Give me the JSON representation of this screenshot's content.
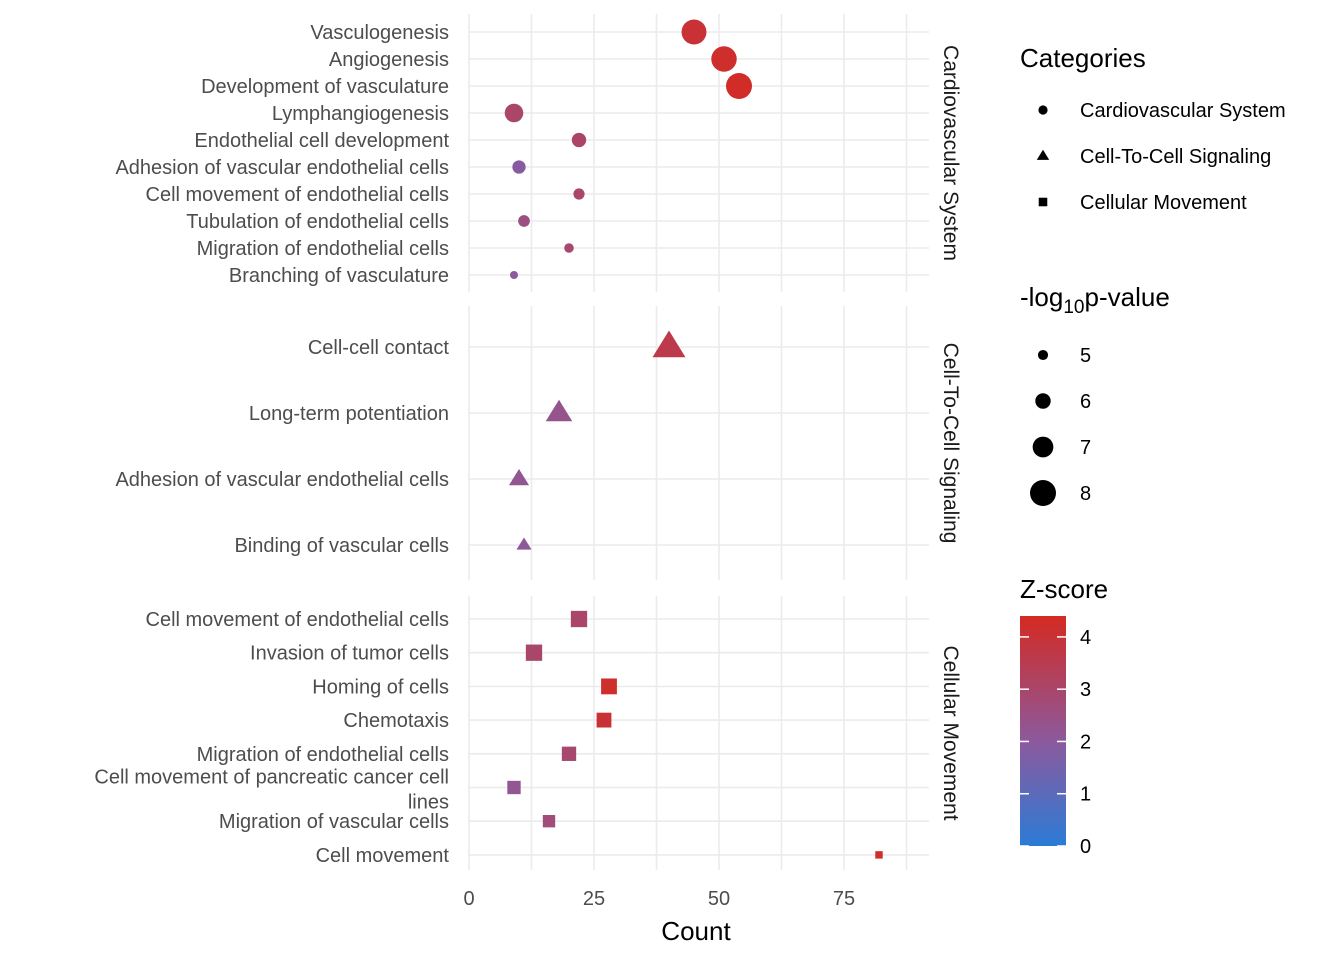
{
  "chart_data": {
    "type": "scatter",
    "xlabel": "Count",
    "xlim": [
      0,
      92
    ],
    "x_ticks": [
      "0",
      "25",
      "50",
      "75"
    ],
    "x_tick_values": [
      0,
      25,
      50,
      75
    ],
    "facets": [
      {
        "name": "Cardiovascular System",
        "shape": "circle",
        "points": [
          {
            "label": "Vasculogenesis",
            "x": 45,
            "size": 7.8,
            "z": 4.0
          },
          {
            "label": "Angiogenesis",
            "x": 51,
            "size": 7.9,
            "z": 4.2
          },
          {
            "label": "Development of vasculature",
            "x": 54,
            "size": 8.0,
            "z": 4.3
          },
          {
            "label": "Lymphangiogenesis",
            "x": 9,
            "size": 6.6,
            "z": 3.0
          },
          {
            "label": "Endothelial cell development",
            "x": 22,
            "size": 5.8,
            "z": 3.1
          },
          {
            "label": "Adhesion of vascular endothelial cells",
            "x": 10,
            "size": 5.6,
            "z": 1.9
          },
          {
            "label": "Cell movement of endothelial cells",
            "x": 22,
            "size": 5.2,
            "z": 3.0
          },
          {
            "label": "Tubulation of endothelial cells",
            "x": 11,
            "size": 5.3,
            "z": 2.5
          },
          {
            "label": "Migration of endothelial cells",
            "x": 20,
            "size": 4.9,
            "z": 2.9
          },
          {
            "label": "Branching of vasculature",
            "x": 9,
            "size": 4.6,
            "z": 2.0
          }
        ]
      },
      {
        "name": "Cell-To-Cell Signaling",
        "shape": "triangle",
        "points": [
          {
            "label": "Cell-cell contact",
            "x": 40,
            "size": 7.7,
            "z": 3.6
          },
          {
            "label": "Long-term potentiation",
            "x": 18,
            "size": 6.8,
            "z": 2.3
          },
          {
            "label": "Adhesion of vascular endothelial cells",
            "x": 10,
            "size": 5.9,
            "z": 2.2
          },
          {
            "label": "Binding of vascular cells",
            "x": 11,
            "size": 5.2,
            "z": 2.1
          }
        ]
      },
      {
        "name": "Cellular Movement",
        "shape": "square",
        "points": [
          {
            "label": "Cell movement of endothelial cells",
            "x": 22,
            "size": 6.4,
            "z": 3.0
          },
          {
            "label": "Invasion of tumor cells",
            "x": 13,
            "size": 6.4,
            "z": 3.0
          },
          {
            "label": "Homing of cells",
            "x": 28,
            "size": 6.3,
            "z": 4.2
          },
          {
            "label": "Chemotaxis",
            "x": 27,
            "size": 6.1,
            "z": 4.0
          },
          {
            "label": "Migration of endothelial cells",
            "x": 20,
            "size": 6.0,
            "z": 2.9
          },
          {
            "label": "Cell movement of pancreatic cancer cell lines",
            "x": 9,
            "size": 5.8,
            "z": 2.2
          },
          {
            "label": "Migration of vascular cells",
            "x": 16,
            "size": 5.6,
            "z": 2.7
          },
          {
            "label": "Cell movement",
            "x": 82,
            "size": 4.6,
            "z": 4.2
          }
        ]
      }
    ],
    "legends": {
      "shape": {
        "title": "Categories",
        "items": [
          "Cardiovascular System",
          "Cell-To-Cell Signaling",
          "Cellular Movement"
        ]
      },
      "size": {
        "title_prefix": "-log",
        "title_sub": "10",
        "title_suffix": "p-value",
        "items": [
          "5",
          "6",
          "7",
          "8"
        ],
        "values": [
          5,
          6,
          7,
          8
        ]
      },
      "color": {
        "title": "Z-score",
        "ticks": [
          "0",
          "1",
          "2",
          "3",
          "4"
        ],
        "tick_values": [
          0,
          1,
          2,
          3,
          4
        ],
        "range": [
          0,
          4.4
        ],
        "low": "#2b7bd6",
        "mid": "#8b5a9e",
        "high": "#d42a22"
      }
    }
  }
}
